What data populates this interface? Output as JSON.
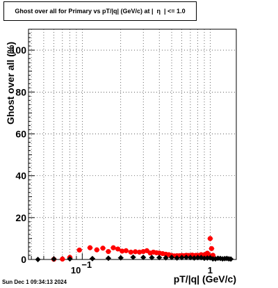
{
  "chart_data": {
    "type": "scatter",
    "title": "Ghost over all for Primary vs pT/|q| (GeV/c) at |  η  | <= 1.0",
    "xlabel": "pT/|q| (GeV/c)",
    "ylabel": "Ghost over all (%)",
    "xscale": "log",
    "xlim": [
      0.038,
      1.6
    ],
    "ylim": [
      0,
      110
    ],
    "grid": true,
    "y_ticks": [
      0,
      20,
      40,
      60,
      80,
      100
    ],
    "y_tick_labels": [
      "0",
      "20",
      "40",
      "60",
      "80",
      "100"
    ],
    "x_tick_labels": [
      {
        "value": 0.1,
        "base": "10",
        "exp": "−1"
      },
      {
        "value": 1,
        "base": "1",
        "exp": ""
      }
    ],
    "series": [
      {
        "color": "#ff0000",
        "marker": "circle",
        "x": [
          0.06,
          0.07,
          0.08,
          0.095,
          0.115,
          0.13,
          0.145,
          0.16,
          0.175,
          0.19,
          0.205,
          0.22,
          0.24,
          0.26,
          0.28,
          0.3,
          0.32,
          0.34,
          0.36,
          0.38,
          0.4,
          0.425,
          0.45,
          0.475,
          0.5,
          0.525,
          0.55,
          0.575,
          0.6,
          0.625,
          0.65,
          0.675,
          0.7,
          0.725,
          0.75,
          0.775,
          0.8,
          0.825,
          0.85,
          0.875,
          0.9,
          0.925,
          0.95,
          0.975,
          1.0,
          1.025,
          1.05
        ],
        "y": [
          0.1,
          0.2,
          1.0,
          4.5,
          5.6,
          4.6,
          5.4,
          3.8,
          5.6,
          5.0,
          4.0,
          4.2,
          3.5,
          3.7,
          3.5,
          3.8,
          4.2,
          3.1,
          3.5,
          3.2,
          3.1,
          2.8,
          2.5,
          2.3,
          1.9,
          1.7,
          1.8,
          1.8,
          1.9,
          1.8,
          2.0,
          1.9,
          1.9,
          2.1,
          1.8,
          2.0,
          1.9,
          1.9,
          2.3,
          1.9,
          2.2,
          2.5,
          3.0,
          2.2,
          10.0,
          5.2,
          2.0
        ]
      },
      {
        "color": "#000000",
        "marker": "diamond",
        "x": [
          0.045,
          0.06,
          0.08,
          0.12,
          0.16,
          0.2,
          0.25,
          0.3,
          0.35,
          0.4,
          0.45,
          0.5,
          0.55,
          0.6,
          0.65,
          0.7,
          0.75,
          0.8,
          0.85,
          0.9,
          0.95,
          1.0,
          1.05,
          1.1,
          1.15,
          1.2,
          1.25,
          1.3,
          1.35,
          1.4,
          1.45
        ],
        "y": [
          0.0,
          0.2,
          0.3,
          0.4,
          0.6,
          0.8,
          1.1,
          1.0,
          0.9,
          0.9,
          0.8,
          1.0,
          0.7,
          0.9,
          1.0,
          0.9,
          0.7,
          0.9,
          0.9,
          0.6,
          0.7,
          0.8,
          0.3,
          0.3,
          0.6,
          0.5,
          0.3,
          0.4,
          0.5,
          0.3,
          0.2
        ]
      }
    ]
  },
  "footer": {
    "timestamp": "Sun Dec  1 09:34:13 2024"
  }
}
